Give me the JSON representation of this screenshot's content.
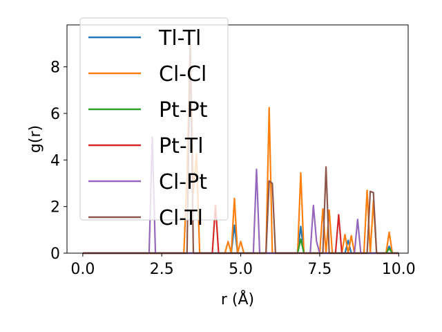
{
  "chart_data": {
    "type": "line",
    "title": "",
    "xlabel": "r (Å)",
    "ylabel": "g(r)",
    "xlim": [
      -0.5,
      10.3
    ],
    "ylim": [
      0,
      9.8
    ],
    "x_ticks": [
      "0.0",
      "2.5",
      "5.0",
      "7.5",
      "10.0"
    ],
    "x_tick_values": [
      0.0,
      2.5,
      5.0,
      7.5,
      10.0
    ],
    "y_ticks": [
      "0",
      "2",
      "4",
      "6",
      "8"
    ],
    "y_tick_values": [
      0,
      2,
      4,
      6,
      8
    ],
    "grid": false,
    "legend_position": "upper-left",
    "series": [
      {
        "name": "Tl-Tl",
        "color": "#1f77b4",
        "points": [
          [
            0,
            0
          ],
          [
            4.7,
            0
          ],
          [
            4.8,
            1.2
          ],
          [
            4.9,
            0
          ],
          [
            6.8,
            0
          ],
          [
            6.9,
            1.15
          ],
          [
            7.0,
            0
          ],
          [
            8.3,
            0
          ],
          [
            8.4,
            0.55
          ],
          [
            8.5,
            0
          ],
          [
            9.6,
            0
          ],
          [
            9.7,
            0.3
          ],
          [
            9.8,
            0
          ],
          [
            10.0,
            0
          ]
        ]
      },
      {
        "name": "Cl-Cl",
        "color": "#ff7f0e",
        "points": [
          [
            0,
            0
          ],
          [
            3.2,
            0
          ],
          [
            3.3,
            3.3
          ],
          [
            3.4,
            9.0
          ],
          [
            3.5,
            2.6
          ],
          [
            3.6,
            4.25
          ],
          [
            3.7,
            0
          ],
          [
            4.5,
            0
          ],
          [
            4.6,
            0.5
          ],
          [
            4.7,
            0
          ],
          [
            4.8,
            2.35
          ],
          [
            4.9,
            0
          ],
          [
            5.0,
            0.5
          ],
          [
            5.1,
            0
          ],
          [
            5.8,
            0
          ],
          [
            5.9,
            6.25
          ],
          [
            6.0,
            0
          ],
          [
            6.8,
            0
          ],
          [
            6.9,
            3.45
          ],
          [
            7.0,
            0
          ],
          [
            7.5,
            0
          ],
          [
            7.6,
            1.9
          ],
          [
            7.7,
            0
          ],
          [
            7.8,
            1.85
          ],
          [
            7.9,
            0
          ],
          [
            8.2,
            0
          ],
          [
            8.3,
            0.8
          ],
          [
            8.4,
            0
          ],
          [
            8.5,
            0.75
          ],
          [
            8.6,
            0
          ],
          [
            8.9,
            0
          ],
          [
            9.0,
            2.7
          ],
          [
            9.1,
            0
          ],
          [
            9.2,
            2.25
          ],
          [
            9.3,
            0
          ],
          [
            9.6,
            0
          ],
          [
            9.7,
            0.9
          ],
          [
            9.8,
            0
          ],
          [
            10.0,
            0
          ]
        ]
      },
      {
        "name": "Pt-Pt",
        "color": "#2ca02c",
        "points": [
          [
            0,
            0
          ],
          [
            6.8,
            0
          ],
          [
            6.9,
            0.6
          ],
          [
            7.0,
            0
          ],
          [
            9.6,
            0
          ],
          [
            9.7,
            0.2
          ],
          [
            9.8,
            0
          ],
          [
            10.0,
            0
          ]
        ]
      },
      {
        "name": "Pt-Tl",
        "color": "#d62728",
        "points": [
          [
            0,
            0
          ],
          [
            4.1,
            0
          ],
          [
            4.2,
            2.05
          ],
          [
            4.3,
            0
          ],
          [
            8.0,
            0
          ],
          [
            8.1,
            1.65
          ],
          [
            8.2,
            0
          ],
          [
            10.0,
            0
          ]
        ]
      },
      {
        "name": "Cl-Pt",
        "color": "#9467bd",
        "points": [
          [
            0,
            0
          ],
          [
            2.1,
            0
          ],
          [
            2.2,
            5.0
          ],
          [
            2.3,
            0
          ],
          [
            5.4,
            0
          ],
          [
            5.5,
            3.6
          ],
          [
            5.6,
            0
          ],
          [
            7.2,
            0
          ],
          [
            7.3,
            2.05
          ],
          [
            7.4,
            0.5
          ],
          [
            7.5,
            0
          ],
          [
            8.6,
            0
          ],
          [
            8.7,
            1.45
          ],
          [
            8.8,
            0
          ],
          [
            10.0,
            0
          ]
        ]
      },
      {
        "name": "Cl-Tl",
        "color": "#8c564b",
        "points": [
          [
            0,
            0
          ],
          [
            3.3,
            0
          ],
          [
            3.4,
            9.2
          ],
          [
            3.5,
            0
          ],
          [
            5.8,
            0
          ],
          [
            5.9,
            3.1
          ],
          [
            6.0,
            3.0
          ],
          [
            6.1,
            0
          ],
          [
            7.6,
            0
          ],
          [
            7.7,
            3.7
          ],
          [
            7.8,
            0
          ],
          [
            9.0,
            0
          ],
          [
            9.1,
            2.65
          ],
          [
            9.2,
            2.6
          ],
          [
            9.3,
            0
          ],
          [
            10.0,
            0
          ]
        ]
      }
    ]
  }
}
